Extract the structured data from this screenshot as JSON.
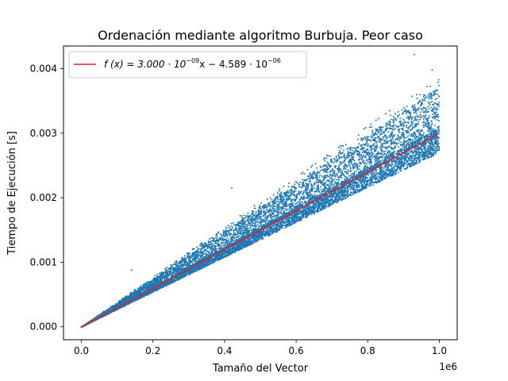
{
  "chart_data": {
    "type": "scatter",
    "title": "Ordenación mediante algoritmo Burbuja. Peor caso",
    "xlabel": "Tamaño del Vector",
    "ylabel": "Tiempo de Ejecución [s]",
    "x_offset_label": "1e6",
    "xlim": [
      -50000,
      1050000
    ],
    "ylim": [
      -0.0002,
      0.00435
    ],
    "x_ticks": [
      {
        "value": 0,
        "label": "0.0"
      },
      {
        "value": 200000,
        "label": "0.2"
      },
      {
        "value": 400000,
        "label": "0.4"
      },
      {
        "value": 600000,
        "label": "0.6"
      },
      {
        "value": 800000,
        "label": "0.8"
      },
      {
        "value": 1000000,
        "label": "1.0"
      }
    ],
    "y_ticks": [
      {
        "value": 0,
        "label": "0.000"
      },
      {
        "value": 0.001,
        "label": "0.001"
      },
      {
        "value": 0.002,
        "label": "0.002"
      },
      {
        "value": 0.003,
        "label": "0.003"
      },
      {
        "value": 0.004,
        "label": "0.004"
      }
    ],
    "grid": false,
    "legend_position": "top-left",
    "series": [
      {
        "kind": "scatter",
        "color": "#1f77b4",
        "x_range": [
          0,
          1000000
        ],
        "approx_point_count": 10000,
        "fit_slope": 3e-09,
        "fit_intercept": -4.589e-06,
        "spread_upper_fraction": 0.3,
        "spread_lower_fraction": 0.1,
        "outliers": [
          {
            "x": 930000,
            "y": 0.00422
          },
          {
            "x": 420000,
            "y": 0.00215
          },
          {
            "x": 140000,
            "y": 0.00088
          },
          {
            "x": 980000,
            "y": 0.00398
          }
        ]
      },
      {
        "kind": "line",
        "color": "#d62728",
        "legend_label": "$f\\,(x) = 3.000\\cdot10^{-09}x - 4.589\\cdot10^{-06}$",
        "legend_parts": {
          "lhs": "f (x) = 3.000 · 10",
          "exp1": "−09",
          "mid": "x − 4.589 · 10",
          "exp2": "−06"
        },
        "slope": 3e-09,
        "intercept": -4.589e-06,
        "x_range": [
          0,
          1000000
        ]
      }
    ]
  }
}
